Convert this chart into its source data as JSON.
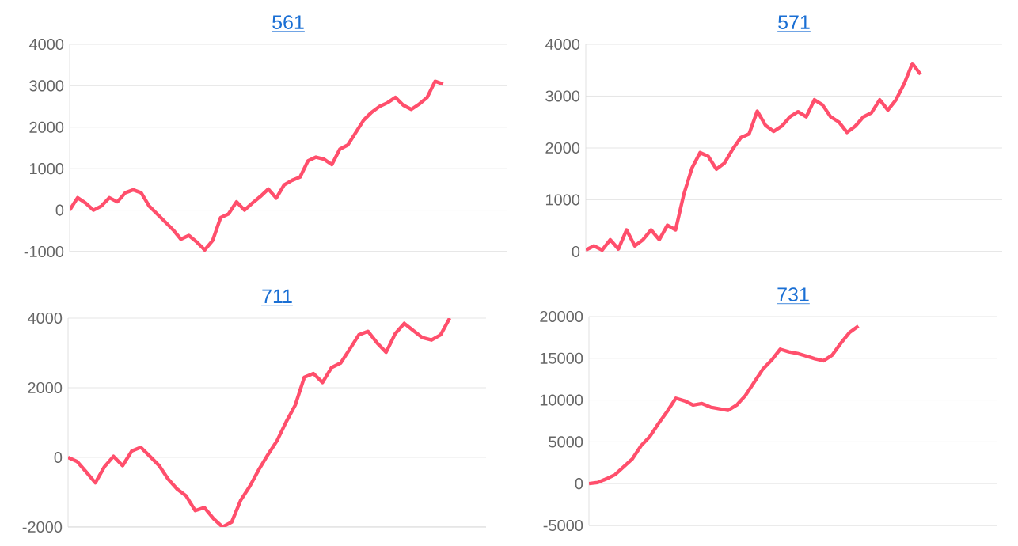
{
  "chart_data": [
    {
      "type": "line",
      "title": "561",
      "color": "#ff4f6c",
      "grid": "y",
      "tick_labels": "y",
      "ylim": [
        -1000,
        4000
      ],
      "yticks": [
        -1000,
        0,
        1000,
        2000,
        3000,
        4000
      ],
      "categories": [
        null,
        null,
        null,
        null,
        null,
        null,
        null,
        null,
        null,
        null,
        null,
        null,
        null,
        null,
        null,
        null,
        null,
        null,
        null,
        null,
        null,
        null,
        null,
        null,
        null,
        null,
        null,
        null,
        null,
        null,
        null,
        null,
        null,
        null,
        null,
        null,
        null,
        null,
        null,
        null,
        null,
        null,
        null,
        null,
        null,
        null,
        null,
        null,
        null,
        null,
        null,
        null,
        null,
        null,
        null,
        null
      ],
      "values": [
        0,
        300,
        170,
        0,
        100,
        300,
        200,
        420,
        490,
        420,
        100,
        -90,
        -280,
        -470,
        -700,
        -610,
        -770,
        -960,
        -730,
        -180,
        -90,
        200,
        0,
        170,
        330,
        510,
        290,
        610,
        720,
        800,
        1190,
        1280,
        1230,
        1100,
        1470,
        1570,
        1870,
        2170,
        2360,
        2500,
        2590,
        2720,
        2530,
        2430,
        2560,
        2720,
        3110,
        3040,
        null,
        null,
        null,
        null,
        null,
        null,
        null,
        null
      ]
    },
    {
      "type": "line",
      "title": "571",
      "color": "#ff4f6c",
      "grid": "y",
      "tick_labels": "y",
      "ylim": [
        0,
        4000
      ],
      "yticks": [
        0,
        1000,
        2000,
        3000,
        4000
      ],
      "categories": [
        null,
        null,
        null,
        null,
        null,
        null,
        null,
        null,
        null,
        null,
        null,
        null,
        null,
        null,
        null,
        null,
        null,
        null,
        null,
        null,
        null,
        null,
        null,
        null,
        null,
        null,
        null,
        null,
        null,
        null,
        null,
        null,
        null,
        null,
        null,
        null,
        null,
        null,
        null,
        null,
        null,
        null,
        null,
        null,
        null,
        null,
        null,
        null,
        null,
        null,
        null,
        null
      ],
      "values": [
        30,
        110,
        30,
        230,
        50,
        420,
        110,
        230,
        420,
        230,
        510,
        420,
        1100,
        1610,
        1910,
        1840,
        1590,
        1710,
        1980,
        2200,
        2270,
        2710,
        2440,
        2320,
        2420,
        2600,
        2700,
        2600,
        2930,
        2830,
        2600,
        2500,
        2300,
        2420,
        2600,
        2680,
        2930,
        2730,
        2930,
        3240,
        3630,
        3420,
        null,
        null,
        null,
        null,
        null,
        null,
        null,
        null,
        null,
        null
      ]
    },
    {
      "type": "line",
      "title": "711",
      "color": "#ff4f6c",
      "grid": "y",
      "tick_labels": "y",
      "ylim": [
        -2000,
        4000
      ],
      "yticks": [
        -2000,
        0,
        2000,
        4000
      ],
      "categories": [
        null,
        null,
        null,
        null,
        null,
        null,
        null,
        null,
        null,
        null,
        null,
        null,
        null,
        null,
        null,
        null,
        null,
        null,
        null,
        null,
        null,
        null,
        null,
        null,
        null,
        null,
        null,
        null,
        null,
        null,
        null,
        null,
        null,
        null,
        null,
        null,
        null,
        null,
        null,
        null,
        null,
        null,
        null,
        null,
        null,
        null,
        null
      ],
      "values": [
        0,
        -120,
        -420,
        -730,
        -270,
        30,
        -240,
        180,
        290,
        30,
        -230,
        -620,
        -910,
        -1110,
        -1530,
        -1440,
        -1760,
        -2000,
        -1860,
        -1230,
        -830,
        -350,
        80,
        480,
        1020,
        1500,
        2300,
        2410,
        2150,
        2580,
        2710,
        3110,
        3520,
        3620,
        3290,
        3020,
        3550,
        3850,
        3640,
        3440,
        3370,
        3520,
        4000,
        null,
        null,
        null,
        null
      ]
    },
    {
      "type": "line",
      "title": "731",
      "color": "#ff4f6c",
      "grid": "y",
      "tick_labels": "y",
      "ylim": [
        -5000,
        20000
      ],
      "yticks": [
        -5000,
        0,
        5000,
        10000,
        15000,
        20000
      ],
      "categories": [
        null,
        null,
        null,
        null,
        null,
        null,
        null,
        null,
        null,
        null,
        null,
        null,
        null,
        null,
        null,
        null,
        null,
        null,
        null,
        null,
        null,
        null,
        null,
        null,
        null,
        null,
        null,
        null,
        null,
        null,
        null,
        null,
        null,
        null,
        null,
        null,
        null,
        null,
        null,
        null,
        null,
        null,
        null,
        null,
        null,
        null,
        null,
        null
      ],
      "values": [
        0,
        130,
        570,
        1070,
        2020,
        2970,
        4540,
        5620,
        7190,
        8640,
        10220,
        9910,
        9400,
        9590,
        9150,
        8960,
        8770,
        9400,
        10540,
        12110,
        13690,
        14760,
        16090,
        15770,
        15580,
        15270,
        14950,
        14700,
        15400,
        16840,
        18110,
        18860,
        null,
        null,
        null,
        null,
        null,
        null,
        null,
        null,
        null,
        null,
        null,
        null,
        null,
        null,
        null,
        null
      ]
    }
  ]
}
